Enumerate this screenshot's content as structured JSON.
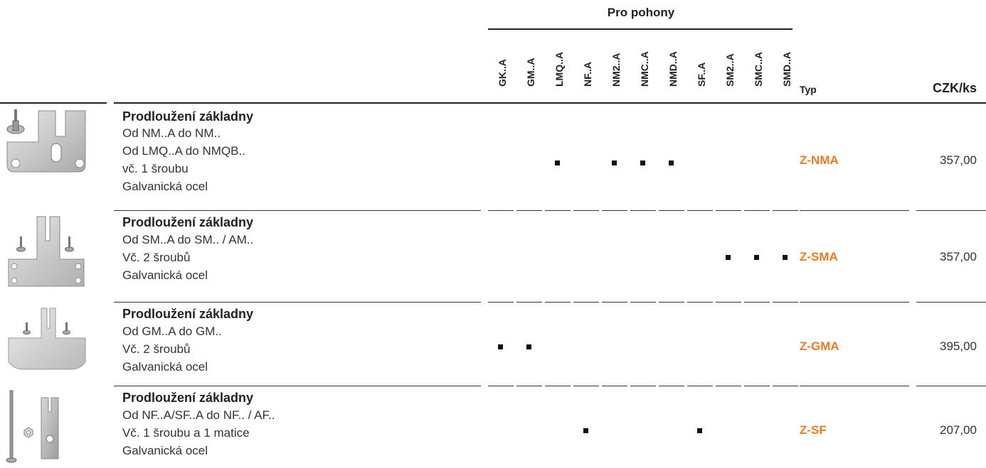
{
  "header": {
    "group_title": "Pro pohony",
    "columns": [
      "GK..A",
      "GM..A",
      "LMQ..A",
      "NF..A",
      "NM2..A",
      "NMC..A",
      "NMD..A",
      "SF..A",
      "SM2..A",
      "SMC..A",
      "SMD..A"
    ],
    "typ": "Typ",
    "price": "CZK/ks"
  },
  "rows": [
    {
      "title": "Prodloužení základny",
      "lines": [
        "Od NM..A do NM..",
        "Od LMQ..A do NMQB..",
        "vč. 1 šroubu",
        "Galvanická ocel"
      ],
      "marks": [
        "LMQ..A",
        "NM2..A",
        "NMC..A",
        "NMD..A"
      ],
      "code": "Z-NMA",
      "price": "357,00",
      "image_icon": "base-extension-plate-with-screw-icon"
    },
    {
      "title": "Prodloužení základny",
      "lines": [
        "Od SM..A do SM.. / AM..",
        "Vč. 2 šroubů",
        "Galvanická ocel"
      ],
      "marks": [
        "SM2..A",
        "SMC..A",
        "SMD..A"
      ],
      "code": "Z-SMA",
      "price": "357,00",
      "image_icon": "base-extension-plate-two-screws-icon"
    },
    {
      "title": "Prodloužení základny",
      "lines": [
        "Od GM..A do GM..",
        "Vč. 2 šroubů",
        "Galvanická ocel"
      ],
      "marks": [
        "GK..A",
        "GM..A"
      ],
      "code": "Z-GMA",
      "price": "395,00",
      "image_icon": "base-extension-wide-plate-icon"
    },
    {
      "title": "Prodloužení základny",
      "lines": [
        "Od NF..A/SF..A do NF.. / AF..",
        "Vč. 1 šroubu a 1 matice",
        "Galvanická ocel"
      ],
      "marks": [
        "NF..A",
        "SF..A"
      ],
      "code": "Z-SF",
      "price": "207,00",
      "image_icon": "base-extension-bolt-nut-bracket-icon"
    }
  ],
  "colors": {
    "accent": "#ea7a26",
    "text": "#222222"
  }
}
